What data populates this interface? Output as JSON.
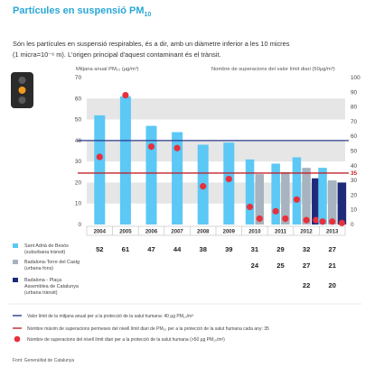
{
  "header": {
    "title_main": "Partícules en suspensió PM",
    "title_sub": "10",
    "intro_line1": "Són les partícules en suspensió respirables, és a dir, amb un diàmetre inferior a les 10 micres",
    "intro_line2": "(1 micra=10⁻⁶ m). L'origen principal d'aquest contaminant és el trànsit."
  },
  "colors": {
    "title": "#2aa7d6",
    "sant_adria": "#5bc8f5",
    "badalona_torre": "#a7b3be",
    "badalona_placa": "#1f2a7a",
    "limit_annual": "#2b3a8c",
    "limit_exceed": "#c0232e",
    "exceed_dot": "#e8303c",
    "band": "#e6e6e6"
  },
  "legend": {
    "series": [
      {
        "line1": "Sant Adrià de Besòs",
        "line2": "(suburbana trànsit)",
        "line3": ""
      },
      {
        "line1": "Badalona-Torre del Castg",
        "line2": "(urbana fons)",
        "line3": ""
      },
      {
        "line1": "Badalona - Plaça",
        "line2": "Assemblea de Catalunya",
        "line3": "(urbana trànsit)"
      }
    ],
    "notes": [
      "Valor límit de la mitjana anual per a la protecció de la salut humana: 40 μg PM₁₀/m³",
      "Nombre màxim de superacions permeses del nivell límit diari de PM₁₀ per a la protecció de la salut humana cada any: 35",
      "Nombre de superacions del nivell límit diari per a la protecció de la salut humana (>50 μg PM₁₀/m³)"
    ]
  },
  "table": {
    "rows": [
      [
        "52",
        "61",
        "47",
        "44",
        "38",
        "39",
        "31",
        "29",
        "32",
        "27"
      ],
      [
        "",
        "",
        "",
        "",
        "",
        "",
        "24",
        "25",
        "27",
        "21"
      ],
      [
        "",
        "",
        "",
        "",
        "",
        "",
        "",
        "",
        "22",
        "20"
      ]
    ]
  },
  "source": "Font: Generalitat de Catalunya",
  "chart_data": {
    "type": "bar",
    "left_axis_label": "Mitjana anual PM₁₀ (μg/m³)",
    "right_axis_label": "Nombre de superacions del valor límit diari (50μg/m³)",
    "left_ylim": [
      0,
      70
    ],
    "left_ticks": [
      0,
      10,
      20,
      30,
      40,
      50,
      60,
      70
    ],
    "right_ylim": [
      0,
      100
    ],
    "right_ticks": [
      0,
      10,
      20,
      30,
      40,
      50,
      60,
      70,
      80,
      90,
      100
    ],
    "years": [
      "2004",
      "2005",
      "2006",
      "2007",
      "2008",
      "2009",
      "2010",
      "2011",
      "2012",
      "2013"
    ],
    "series": [
      {
        "key": "sant_adria",
        "values": [
          52,
          61,
          47,
          44,
          38,
          39,
          31,
          29,
          32,
          27
        ]
      },
      {
        "key": "badalona_torre",
        "values": [
          null,
          null,
          null,
          null,
          null,
          null,
          24,
          25,
          27,
          21
        ]
      },
      {
        "key": "badalona_placa",
        "values": [
          null,
          null,
          null,
          null,
          null,
          null,
          null,
          null,
          22,
          20
        ]
      }
    ],
    "exceedances": [
      {
        "key": "sant_adria",
        "values": [
          46,
          88,
          53,
          52,
          26,
          31,
          12,
          9,
          17,
          2
        ]
      },
      {
        "key": "badalona_torre",
        "values": [
          null,
          null,
          null,
          null,
          null,
          null,
          4,
          4,
          3,
          2
        ]
      },
      {
        "key": "badalona_placa",
        "values": [
          null,
          null,
          null,
          null,
          null,
          null,
          null,
          null,
          3,
          1
        ]
      }
    ],
    "annual_limit": 40,
    "max_exceedances": 35
  }
}
